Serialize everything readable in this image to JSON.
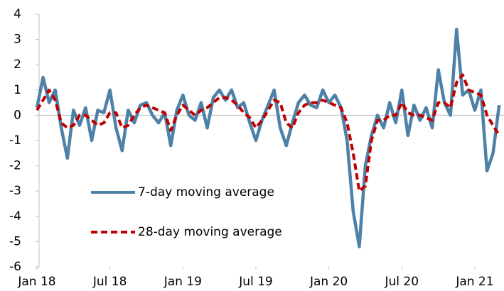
{
  "chart_data": {
    "type": "line",
    "x": [
      0,
      0.5,
      1,
      1.5,
      2,
      2.5,
      3,
      3.5,
      4,
      4.5,
      5,
      5.5,
      6,
      6.5,
      7,
      7.5,
      8,
      8.5,
      9,
      9.5,
      10,
      10.5,
      11,
      11.5,
      12,
      12.5,
      13,
      13.5,
      14,
      14.5,
      15,
      15.5,
      16,
      16.5,
      17,
      17.5,
      18,
      18.5,
      19,
      19.5,
      20,
      20.5,
      21,
      21.5,
      22,
      22.5,
      23,
      23.5,
      24,
      24.5,
      25,
      25.5,
      26,
      26.5,
      27,
      27.5,
      28,
      28.5,
      29,
      29.5,
      30,
      30.5,
      31,
      31.5,
      32,
      32.5,
      33,
      33.5,
      34,
      34.5,
      35,
      35.5,
      36,
      36.5,
      37,
      37.5,
      38
    ],
    "series": [
      {
        "name": "7-day moving average",
        "color": "#4e81a8",
        "dash": false,
        "values": [
          0.3,
          1.5,
          0.5,
          1.0,
          -0.5,
          -1.7,
          0.2,
          -0.4,
          0.3,
          -1.0,
          0.2,
          0.1,
          1.0,
          -0.5,
          -1.4,
          0.2,
          -0.3,
          0.4,
          0.5,
          0.0,
          -0.3,
          0.1,
          -1.2,
          0.2,
          0.8,
          0.0,
          -0.2,
          0.5,
          -0.5,
          0.7,
          1.0,
          0.6,
          1.0,
          0.3,
          0.5,
          -0.3,
          -1.0,
          -0.2,
          0.4,
          1.0,
          -0.5,
          -1.2,
          -0.3,
          0.5,
          0.8,
          0.4,
          0.3,
          1.0,
          0.5,
          0.8,
          0.3,
          -1.0,
          -3.8,
          -5.2,
          -2.0,
          -0.8,
          0.0,
          -0.5,
          0.5,
          -0.3,
          1.0,
          -0.8,
          0.4,
          -0.2,
          0.3,
          -0.5,
          1.8,
          0.5,
          0.0,
          3.4,
          0.8,
          1.0,
          0.2,
          1.0,
          -2.2,
          -1.5,
          0.4
        ]
      },
      {
        "name": "28-day moving average",
        "color": "#c00000",
        "dash": true,
        "values": [
          0.2,
          0.6,
          1.0,
          0.6,
          -0.3,
          -0.5,
          -0.4,
          0.0,
          0.0,
          -0.2,
          -0.4,
          -0.3,
          0.1,
          0.1,
          -0.5,
          -0.4,
          0.0,
          0.3,
          0.4,
          0.3,
          0.2,
          0.1,
          -0.6,
          0.0,
          0.4,
          0.2,
          0.0,
          0.2,
          0.3,
          0.5,
          0.7,
          0.7,
          0.6,
          0.4,
          0.1,
          -0.1,
          -0.5,
          -0.2,
          0.2,
          0.6,
          0.5,
          -0.3,
          -0.5,
          0.1,
          0.4,
          0.5,
          0.5,
          0.6,
          0.5,
          0.4,
          0.3,
          -0.3,
          -1.5,
          -3.0,
          -2.8,
          -1.0,
          -0.2,
          -0.2,
          0.0,
          0.0,
          0.5,
          0.1,
          0.0,
          0.0,
          -0.1,
          -0.2,
          0.5,
          0.5,
          0.3,
          1.3,
          1.6,
          1.0,
          0.9,
          0.8,
          0.0,
          -0.4,
          -0.8
        ]
      }
    ],
    "xlim": [
      0,
      38.4
    ],
    "xticks": [
      {
        "value": 0,
        "label": "Jan 18"
      },
      {
        "value": 6,
        "label": "Jul 18"
      },
      {
        "value": 12,
        "label": "Jan 19"
      },
      {
        "value": 18,
        "label": "Jul 19"
      },
      {
        "value": 24,
        "label": "Jan 20"
      },
      {
        "value": 30,
        "label": "Jul 20"
      },
      {
        "value": 36,
        "label": "Jan 21"
      }
    ],
    "ylim": [
      -6,
      4
    ],
    "yticks": [
      -6,
      -5,
      -4,
      -3,
      -2,
      -1,
      0,
      1,
      2,
      3,
      4
    ]
  }
}
